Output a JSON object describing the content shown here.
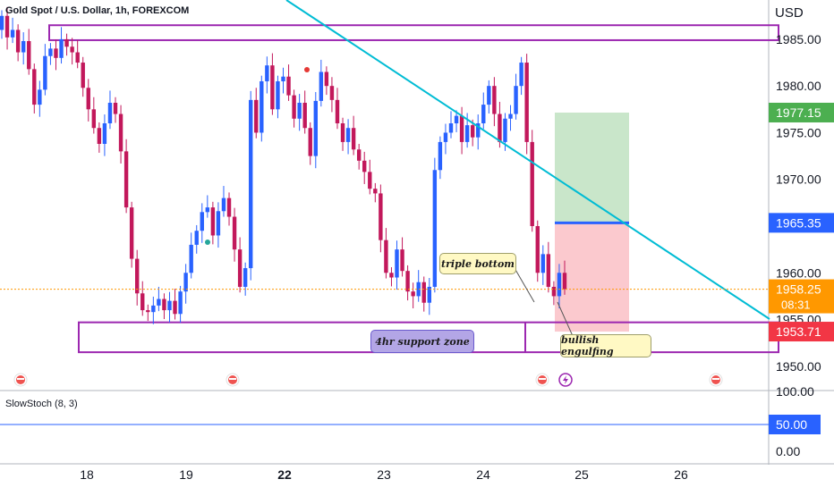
{
  "header": {
    "title": "Gold Spot / U.S. Dollar, 1h, FOREXCOM",
    "currency": "USD"
  },
  "indicator": {
    "label": "SlowStoch (8, 3)",
    "ticks": [
      "100.00",
      "50.00",
      "0.00"
    ],
    "level": 50
  },
  "annotations": {
    "triple_bottom": "triple bottom",
    "support_zone": "4hr support zone",
    "bullish_engulfing": "bullish engulfing"
  },
  "price_tags": {
    "target": "1977.15",
    "entry": "1965.35",
    "current": "1958.25",
    "countdown": "08:31",
    "stop": "1953.71"
  },
  "colors": {
    "bull": "#2962ff",
    "bear": "#c2185b",
    "zone": "#9c27b0",
    "trendline": "#00bcd4",
    "target_tag": "#4caf50",
    "entry_tag": "#2962ff",
    "current_tag": "#ff9800",
    "stop_tag": "#f23645"
  },
  "chart_data": {
    "type": "candlestick",
    "y_ticks": [
      1985,
      1980,
      1975,
      1970,
      1965,
      1960,
      1955,
      1950
    ],
    "y_tick_labels": [
      "1985.00",
      "1980.00",
      "1975.00",
      "1970.00",
      "1965.00",
      "1960.00",
      "1955.00",
      "1950.00"
    ],
    "x_tick_labels": [
      "18",
      "19",
      "22",
      "23",
      "24",
      "25",
      "26"
    ],
    "ylim": [
      1947.4,
      1989.2
    ],
    "current_price": 1958.25,
    "resistance_zone": [
      1984.9,
      1986.5
    ],
    "support_zone": [
      1951.5,
      1954.7
    ],
    "position": {
      "entry": 1965.35,
      "target": 1977.15,
      "stop": 1953.71
    },
    "close_series": [
      1987.5,
      1985.2,
      1986.0,
      1983.6,
      1984.8,
      1981.8,
      1978.0,
      1979.6,
      1983.2,
      1984.0,
      1983.0,
      1985.0,
      1984.2,
      1983.6,
      1982.5,
      1979.8,
      1977.5,
      1975.5,
      1973.8,
      1976.0,
      1978.2,
      1977.0,
      1973.0,
      1967.0,
      1961.5,
      1957.8,
      1956.0,
      1955.8,
      1956.5,
      1957.2,
      1956.0,
      1957.0,
      1955.6,
      1958.0,
      1960.0,
      1963.0,
      1964.5,
      1966.5,
      1967.0,
      1964.0,
      1966.6,
      1968.0,
      1966.0,
      1962.5,
      1958.5,
      1960.5,
      1978.5,
      1975.0,
      1980.5,
      1982.2,
      1977.5,
      1980.5,
      1981.0,
      1979.0,
      1976.5,
      1978.2,
      1975.5,
      1972.5,
      1978.4,
      1981.5,
      1980.0,
      1978.5,
      1976.0,
      1974.0,
      1975.5,
      1973.2,
      1972.0,
      1970.8,
      1969.0,
      1968.5,
      1963.5,
      1960.0,
      1959.5,
      1962.5,
      1960.2,
      1958.0,
      1957.5,
      1959.0,
      1956.8,
      1958.5,
      1971.0,
      1974.0,
      1975.0,
      1976.0,
      1976.8,
      1974.0,
      1975.8,
      1974.5,
      1976.0,
      1978.0,
      1980.0,
      1977.0,
      1974.0,
      1976.5,
      1977.0,
      1980.0,
      1982.5,
      1974.0,
      1965.0,
      1960.0,
      1962.0,
      1958.5,
      1957.5,
      1960.0,
      1958.25
    ]
  }
}
